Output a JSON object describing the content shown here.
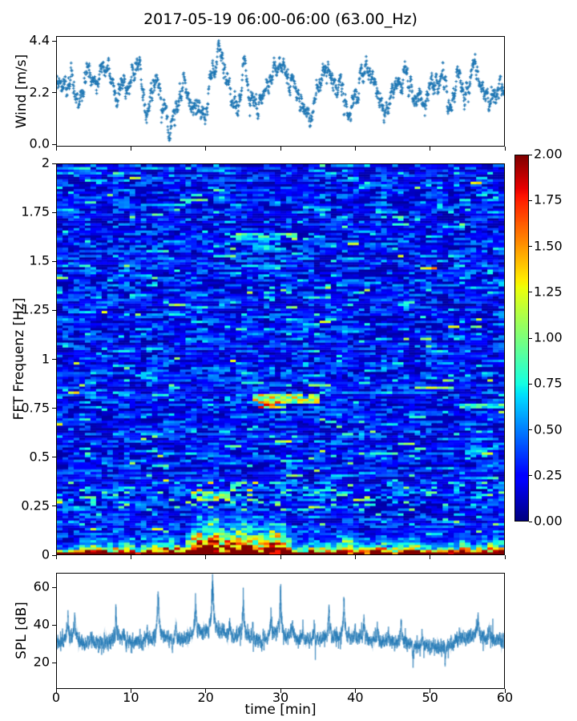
{
  "figure": {
    "title": "2017-05-19 06:00-06:00 (63.00_Hz)",
    "background": "#ffffff",
    "text_color": "#000000",
    "series_color": "#1f77b4"
  },
  "x_axis": {
    "label": "time [min]",
    "tick_labels": [
      "0",
      "10",
      "20",
      "30",
      "40",
      "50",
      "60"
    ],
    "tick_values": [
      0,
      10,
      20,
      30,
      40,
      50,
      60
    ],
    "range": [
      0,
      60
    ]
  },
  "colorbar": {
    "tick_labels": [
      "0.00",
      "0.25",
      "0.50",
      "0.75",
      "1.00",
      "1.25",
      "1.50",
      "1.75",
      "2.00"
    ],
    "tick_values": [
      0,
      0.25,
      0.5,
      0.75,
      1.0,
      1.25,
      1.5,
      1.75,
      2.0
    ],
    "range": [
      0,
      2
    ],
    "colormap": "jet"
  },
  "chart_data": [
    {
      "type": "scatter",
      "ylabel": "Wind [m/s]",
      "marker": "+",
      "color": "#1f77b4",
      "x_range": [
        0,
        60
      ],
      "y_range": [
        -0.09,
        4.61
      ],
      "ytick_labels": [
        "0.0",
        "2.2",
        "4.4"
      ],
      "ytick_values": [
        0.0,
        2.2,
        4.4
      ],
      "n_points": 1700,
      "seed": 42,
      "mean_per_min": [
        2.4,
        2.9,
        3.0,
        1.5,
        3.0,
        2.3,
        3.0,
        3.1,
        1.8,
        2.5,
        2.7,
        3.2,
        0.9,
        2.6,
        2.1,
        0.7,
        1.9,
        2.6,
        1.5,
        1.9,
        1.3,
        3.1,
        3.3,
        2.4,
        1.5,
        3.1,
        2.1,
        1.0,
        2.3,
        2.9,
        3.0,
        2.9,
        2.8,
        1.9,
        1.2,
        2.4,
        2.9,
        2.6,
        2.1,
        1.2,
        1.9,
        3.1,
        2.9,
        2.2,
        1.1,
        2.2,
        2.5,
        2.9,
        2.3,
        1.5,
        2.5,
        2.7,
        2.6,
        1.9,
        2.9,
        1.7,
        3.0,
        2.7,
        1.5,
        2.4,
        2.3
      ],
      "bursts": [
        [
          4.0,
          0.3,
          0.5
        ],
        [
          10.8,
          0.55,
          0.35
        ],
        [
          21.8,
          0.55,
          0.5
        ],
        [
          25.2,
          0.6,
          0.25
        ],
        [
          29.5,
          0.2,
          0.8
        ],
        [
          36.5,
          0.3,
          0.4
        ],
        [
          41.5,
          0.3,
          0.5
        ],
        [
          55.5,
          0.35,
          0.4
        ]
      ],
      "noise": {
        "phi": 0.86,
        "sigma": 0.17,
        "jitter": 0.05
      },
      "clip": [
        0.13,
        4.45
      ]
    },
    {
      "type": "heatmap",
      "ylabel": "FFT Frequenz [Hz]",
      "colormap": "jet",
      "clim": [
        0,
        2
      ],
      "x_range": [
        0,
        60
      ],
      "y_range": [
        0,
        2
      ],
      "ytick_labels": [
        "0",
        "0.25",
        "0.5",
        "0.75",
        "1",
        "1.25",
        "1.5",
        "1.75",
        "2"
      ],
      "ytick_values": [
        0,
        0.25,
        0.5,
        0.75,
        1.0,
        1.25,
        1.5,
        1.75,
        2.0
      ],
      "grid": {
        "nx": 80,
        "ny": 160
      },
      "seed": 7,
      "low_strength_per_min": [
        0.35,
        0.3,
        0.35,
        0.5,
        0.6,
        0.6,
        0.45,
        0.5,
        0.55,
        0.6,
        0.55,
        0.45,
        0.5,
        0.65,
        0.6,
        0.65,
        0.6,
        0.5,
        0.8,
        0.95,
        0.9,
        1.0,
        0.9,
        0.85,
        0.9,
        0.95,
        0.9,
        0.8,
        0.8,
        0.95,
        0.9,
        0.7,
        0.5,
        0.45,
        0.5,
        0.55,
        0.5,
        0.45,
        0.7,
        0.75,
        0.6,
        0.5,
        0.45,
        0.55,
        0.6,
        0.45,
        0.5,
        0.6,
        0.65,
        0.5,
        0.45,
        0.4,
        0.45,
        0.5,
        0.6,
        0.55,
        0.5,
        0.55,
        0.6,
        0.65,
        0.6
      ],
      "features": [
        {
          "f": 1.63,
          "df": 0.022,
          "t0": 24,
          "t1": 32,
          "amp": 1.05
        },
        {
          "f": 1.57,
          "df": 0.014,
          "t0": 26,
          "t1": 30,
          "amp": 0.7
        },
        {
          "f": 0.8,
          "df": 0.02,
          "t0": 26,
          "t1": 35,
          "amp": 1.35
        },
        {
          "f": 0.77,
          "df": 0.014,
          "t0": 27,
          "t1": 31,
          "amp": 1.6
        },
        {
          "f": 0.76,
          "df": 0.016,
          "t0": 54,
          "t1": 60,
          "amp": 0.9
        },
        {
          "f": 0.52,
          "df": 0.014,
          "t0": 55,
          "t1": 58,
          "amp": 0.7
        },
        {
          "f": 1.4,
          "df": 0.014,
          "t0": 57,
          "t1": 60,
          "amp": 0.6
        },
        {
          "f": 0.3,
          "df": 0.02,
          "t0": 19,
          "t1": 23,
          "amp": 1.1
        },
        {
          "f": 0.26,
          "df": 0.014,
          "t0": 8,
          "t1": 10,
          "amp": 0.8
        }
      ]
    },
    {
      "type": "line",
      "ylabel": "SPL [dB]",
      "color": "#1f77b4",
      "x_range": [
        0,
        60
      ],
      "y_range": [
        6,
        67.7
      ],
      "ytick_labels": [
        "20",
        "40",
        "60"
      ],
      "ytick_values": [
        20,
        40,
        60
      ],
      "n_points": 6000,
      "seed": 3,
      "baseline_t": [
        0,
        2,
        4,
        6,
        8,
        10,
        12,
        14,
        16,
        18,
        20,
        22,
        24,
        26,
        28,
        30,
        32,
        34,
        36,
        38,
        40,
        42,
        44,
        46,
        48,
        50,
        52,
        54,
        56,
        58,
        60
      ],
      "baseline_db": [
        30,
        31,
        29.5,
        30,
        31.5,
        30.5,
        31,
        31.5,
        31,
        32,
        33,
        31.5,
        31.5,
        31,
        31.5,
        32.5,
        32,
        31,
        31.5,
        31.5,
        31.5,
        31,
        30.5,
        30,
        28.5,
        28.5,
        28,
        32,
        33.5,
        32,
        31.5
      ],
      "peaks": [
        [
          1.5,
          13,
          0.09
        ],
        [
          2.4,
          14,
          0.1
        ],
        [
          4.6,
          7,
          0.07
        ],
        [
          7.9,
          14,
          0.1
        ],
        [
          9.0,
          6,
          0.06
        ],
        [
          12.1,
          7,
          0.06
        ],
        [
          13.6,
          25,
          0.12
        ],
        [
          16.0,
          11,
          0.08
        ],
        [
          18.6,
          21,
          0.12
        ],
        [
          20.9,
          32,
          0.16
        ],
        [
          22.3,
          8,
          0.07
        ],
        [
          23.2,
          11,
          0.08
        ],
        [
          25.0,
          23,
          0.12
        ],
        [
          26.3,
          8,
          0.06
        ],
        [
          28.7,
          14,
          0.09
        ],
        [
          30.0,
          27,
          0.1
        ],
        [
          31.6,
          11,
          0.08
        ],
        [
          33.0,
          8,
          0.06
        ],
        [
          34.5,
          7,
          0.06
        ],
        [
          36.5,
          17,
          0.1
        ],
        [
          38.5,
          23,
          0.1
        ],
        [
          40.0,
          8,
          0.06
        ],
        [
          41.2,
          13,
          0.09
        ],
        [
          43.0,
          9,
          0.07
        ],
        [
          44.5,
          8,
          0.06
        ],
        [
          46.2,
          13,
          0.08
        ],
        [
          49.0,
          6,
          0.05
        ],
        [
          54.0,
          7,
          0.06
        ],
        [
          56.5,
          12,
          0.09
        ],
        [
          58.0,
          8,
          0.06
        ]
      ],
      "neg_spikes": [
        [
          9.3,
          -8,
          0.04
        ],
        [
          15.5,
          -9,
          0.04
        ],
        [
          27.5,
          -9,
          0.04
        ],
        [
          47.8,
          -13,
          0.05
        ],
        [
          52.1,
          -14,
          0.05
        ]
      ],
      "noise": {
        "phi": 0.55,
        "sigma": 1.6,
        "spike_prob": 0.03,
        "spike_sigma": 3.2
      }
    }
  ]
}
